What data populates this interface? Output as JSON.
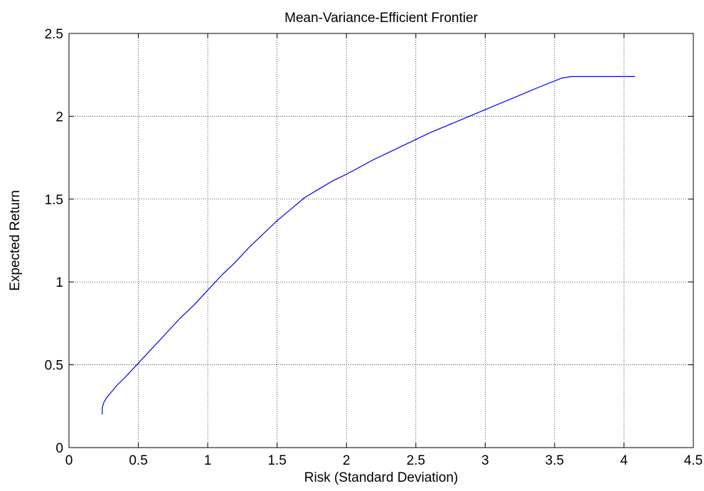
{
  "chart_data": {
    "type": "line",
    "title": "Mean-Variance-Efficient Frontier",
    "xlabel": "Risk (Standard Deviation)",
    "ylabel": "Expected Return",
    "xlim": [
      0,
      4.5
    ],
    "ylim": [
      0,
      2.5
    ],
    "xticks": [
      "0",
      "0.5",
      "1",
      "1.5",
      "2",
      "2.5",
      "3",
      "3.5",
      "4",
      "4.5"
    ],
    "yticks": [
      "0",
      "0.5",
      "1",
      "1.5",
      "2",
      "2.5"
    ],
    "grid": true,
    "series": [
      {
        "color": "#0000ff",
        "x": [
          0.24,
          0.24,
          0.25,
          0.27,
          0.3,
          0.35,
          0.4,
          0.5,
          0.6,
          0.7,
          0.8,
          0.9,
          1.0,
          1.1,
          1.2,
          1.3,
          1.4,
          1.5,
          1.6,
          1.7,
          1.8,
          1.9,
          2.0,
          2.2,
          2.4,
          2.6,
          2.8,
          3.0,
          3.2,
          3.4,
          3.52,
          3.55,
          3.62,
          4.08
        ],
        "y": [
          0.2,
          0.24,
          0.27,
          0.3,
          0.33,
          0.38,
          0.42,
          0.51,
          0.6,
          0.69,
          0.78,
          0.86,
          0.95,
          1.04,
          1.12,
          1.21,
          1.29,
          1.37,
          1.44,
          1.51,
          1.56,
          1.61,
          1.65,
          1.74,
          1.82,
          1.9,
          1.97,
          2.04,
          2.11,
          2.18,
          2.22,
          2.23,
          2.24,
          2.24
        ]
      }
    ]
  }
}
